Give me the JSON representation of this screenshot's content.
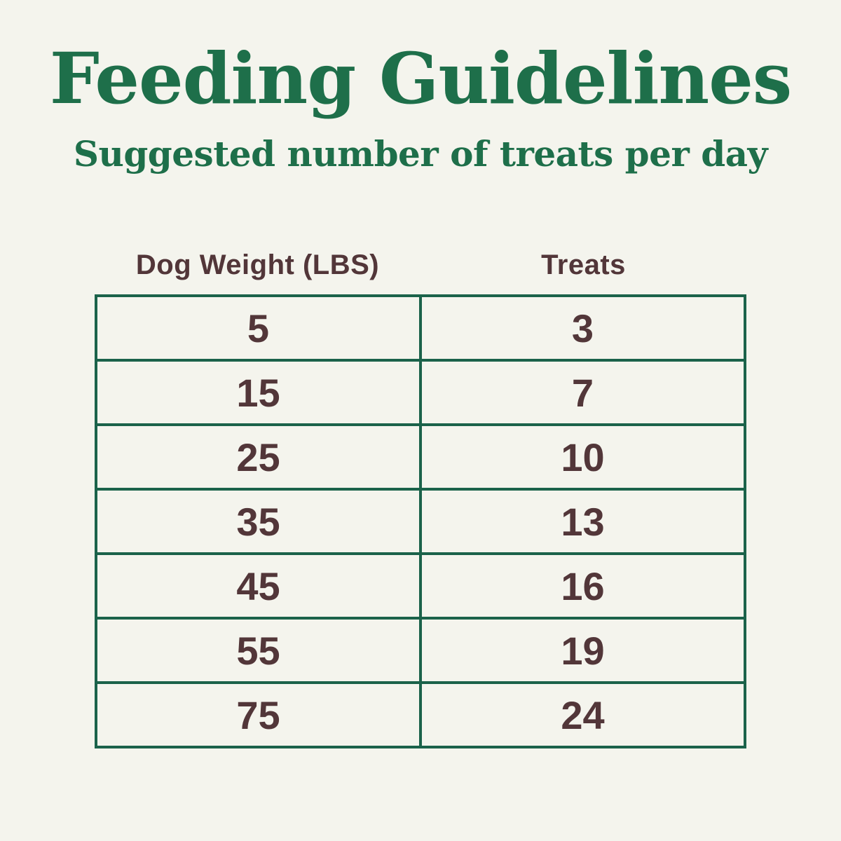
{
  "title": "Feeding Guidelines",
  "subtitle": "Suggested number of treats per day",
  "table": {
    "columns": [
      "Dog Weight (LBS)",
      "Treats"
    ],
    "rows": [
      [
        "5",
        "3"
      ],
      [
        "15",
        "7"
      ],
      [
        "25",
        "10"
      ],
      [
        "35",
        "13"
      ],
      [
        "45",
        "16"
      ],
      [
        "55",
        "19"
      ],
      [
        "75",
        "24"
      ]
    ]
  },
  "colors": {
    "bg": "#f4f4ed",
    "green": "#1e6f4a",
    "border-green": "#1b624a",
    "brown": "#523639"
  },
  "chart_data": {
    "type": "table",
    "title": "Feeding Guidelines",
    "subtitle": "Suggested number of treats per day",
    "columns": [
      "Dog Weight (LBS)",
      "Treats"
    ],
    "rows": [
      [
        5,
        3
      ],
      [
        15,
        7
      ],
      [
        25,
        10
      ],
      [
        35,
        13
      ],
      [
        45,
        16
      ],
      [
        55,
        19
      ],
      [
        75,
        24
      ]
    ]
  }
}
